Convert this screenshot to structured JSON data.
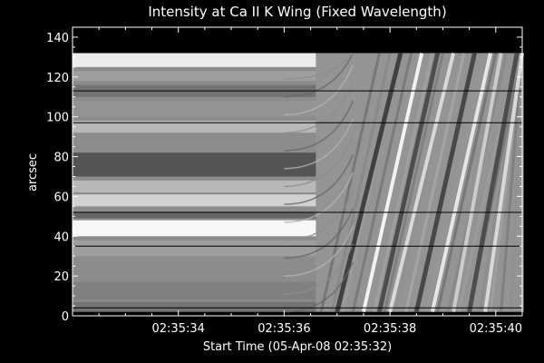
{
  "chart_data": {
    "type": "heatmap",
    "title": "Intensity at Ca II K Wing (Fixed Wavelength)",
    "xlabel": "Start Time (05-Apr-08 02:35:32)",
    "ylabel": "arcsec",
    "x_unit": "seconds after 02:35:32",
    "xlim": [
      0.0,
      8.5
    ],
    "ylim": [
      0,
      145
    ],
    "x_ticks": [
      {
        "value": 2,
        "label": "02:35:34"
      },
      {
        "value": 4,
        "label": "02:35:36"
      },
      {
        "value": 6,
        "label": "02:35:38"
      },
      {
        "value": 8,
        "label": "02:35:40"
      }
    ],
    "y_ticks": [
      0,
      20,
      40,
      60,
      80,
      100,
      120,
      140
    ],
    "data_extent": {
      "x": [
        0.0,
        8.5
      ],
      "y": [
        2,
        132
      ]
    },
    "colormap": "grayscale",
    "transition_time": 4.6,
    "static_bands_before_transition": [
      {
        "y_from": 125,
        "y_to": 132,
        "intensity": 0.92
      },
      {
        "y_from": 118,
        "y_to": 123,
        "intensity": 0.62
      },
      {
        "y_from": 110,
        "y_to": 116,
        "intensity": 0.45
      },
      {
        "y_from": 100,
        "y_to": 108,
        "intensity": 0.58
      },
      {
        "y_from": 92,
        "y_to": 98,
        "intensity": 0.72
      },
      {
        "y_from": 83,
        "y_to": 90,
        "intensity": 0.55
      },
      {
        "y_from": 70,
        "y_to": 82,
        "intensity": 0.33
      },
      {
        "y_from": 62,
        "y_to": 68,
        "intensity": 0.72
      },
      {
        "y_from": 55,
        "y_to": 61,
        "intensity": 0.82
      },
      {
        "y_from": 49,
        "y_to": 52,
        "intensity": 0.4
      },
      {
        "y_from": 40,
        "y_to": 48,
        "intensity": 0.97
      },
      {
        "y_from": 30,
        "y_to": 38,
        "intensity": 0.62
      },
      {
        "y_from": 18,
        "y_to": 29,
        "intensity": 0.55
      },
      {
        "y_from": 8,
        "y_to": 17,
        "intensity": 0.5
      },
      {
        "y_from": 2,
        "y_to": 7,
        "intensity": 0.45
      }
    ],
    "dark_rows": [
      4,
      35,
      52,
      97,
      113
    ],
    "bright_streaks": [
      {
        "x_bottom": 5.5,
        "x_top": 6.6,
        "intensity": 0.95
      },
      {
        "x_bottom": 6.0,
        "x_top": 7.2,
        "intensity": 0.85
      },
      {
        "x_bottom": 6.8,
        "x_top": 7.9,
        "intensity": 0.9
      },
      {
        "x_bottom": 7.2,
        "x_top": 8.1,
        "intensity": 0.8
      },
      {
        "x_bottom": 7.8,
        "x_top": 8.5,
        "intensity": 0.85
      }
    ],
    "dark_streaks": [
      {
        "x_bottom": 5.0,
        "x_top": 6.2,
        "intensity": 0.25
      },
      {
        "x_bottom": 5.8,
        "x_top": 6.9,
        "intensity": 0.3
      },
      {
        "x_bottom": 6.5,
        "x_top": 7.6,
        "intensity": 0.28
      },
      {
        "x_bottom": 7.5,
        "x_top": 8.4,
        "intensity": 0.3
      }
    ]
  }
}
